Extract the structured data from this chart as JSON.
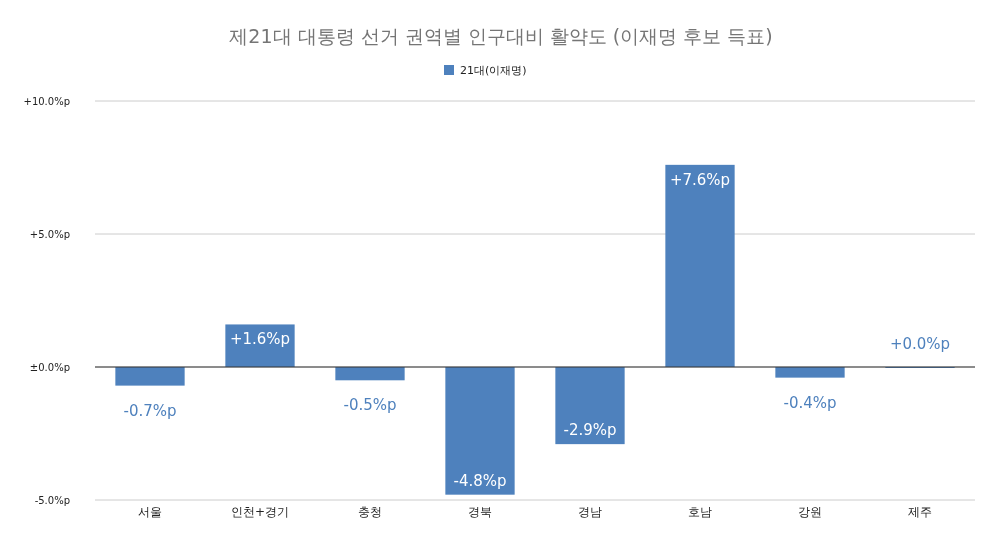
{
  "chart_data": {
    "type": "bar",
    "title": "제21대 대통령 선거 권역별 인구대비 활약도 (이재명 후보 득표)",
    "categories": [
      "서울",
      "인천+경기",
      "충청",
      "경북",
      "경남",
      "호남",
      "강원",
      "제주"
    ],
    "series": [
      {
        "name": "21대(이재명)",
        "color": "#4e81bd",
        "values": [
          -0.7,
          1.6,
          -0.5,
          -4.8,
          -2.9,
          7.6,
          -0.4,
          0.0
        ],
        "value_labels": [
          "-0.7%p",
          "+1.6%p",
          "-0.5%p",
          "-4.8%p",
          "-2.9%p",
          "+7.6%p",
          "-0.4%p",
          "+0.0%p"
        ]
      }
    ],
    "ylim": [
      -5,
      10
    ],
    "yticks": [
      {
        "value": -5,
        "label": "-5.0%p"
      },
      {
        "value": 0,
        "label": "±0.0%p"
      },
      {
        "value": 5,
        "label": "+5.0%p"
      },
      {
        "value": 10,
        "label": "+10.0%p"
      }
    ],
    "grid": "y",
    "legend": "top"
  }
}
